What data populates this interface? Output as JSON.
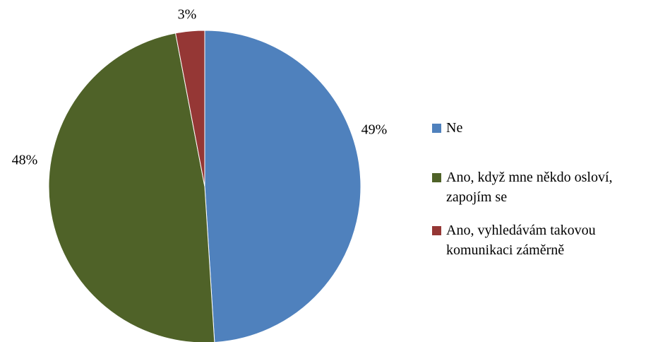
{
  "chart_data": {
    "type": "pie",
    "categories": [
      "Ne",
      "Ano, když mne někdo osloví, zapojím se",
      "Ano, vyhledávám takovou komunikaci záměrně"
    ],
    "values": [
      49,
      48,
      3
    ],
    "value_labels": [
      "49%",
      "48%",
      "3%"
    ],
    "colors": [
      "#4f81bd",
      "#4f6228",
      "#953735"
    ],
    "legend": "right"
  }
}
